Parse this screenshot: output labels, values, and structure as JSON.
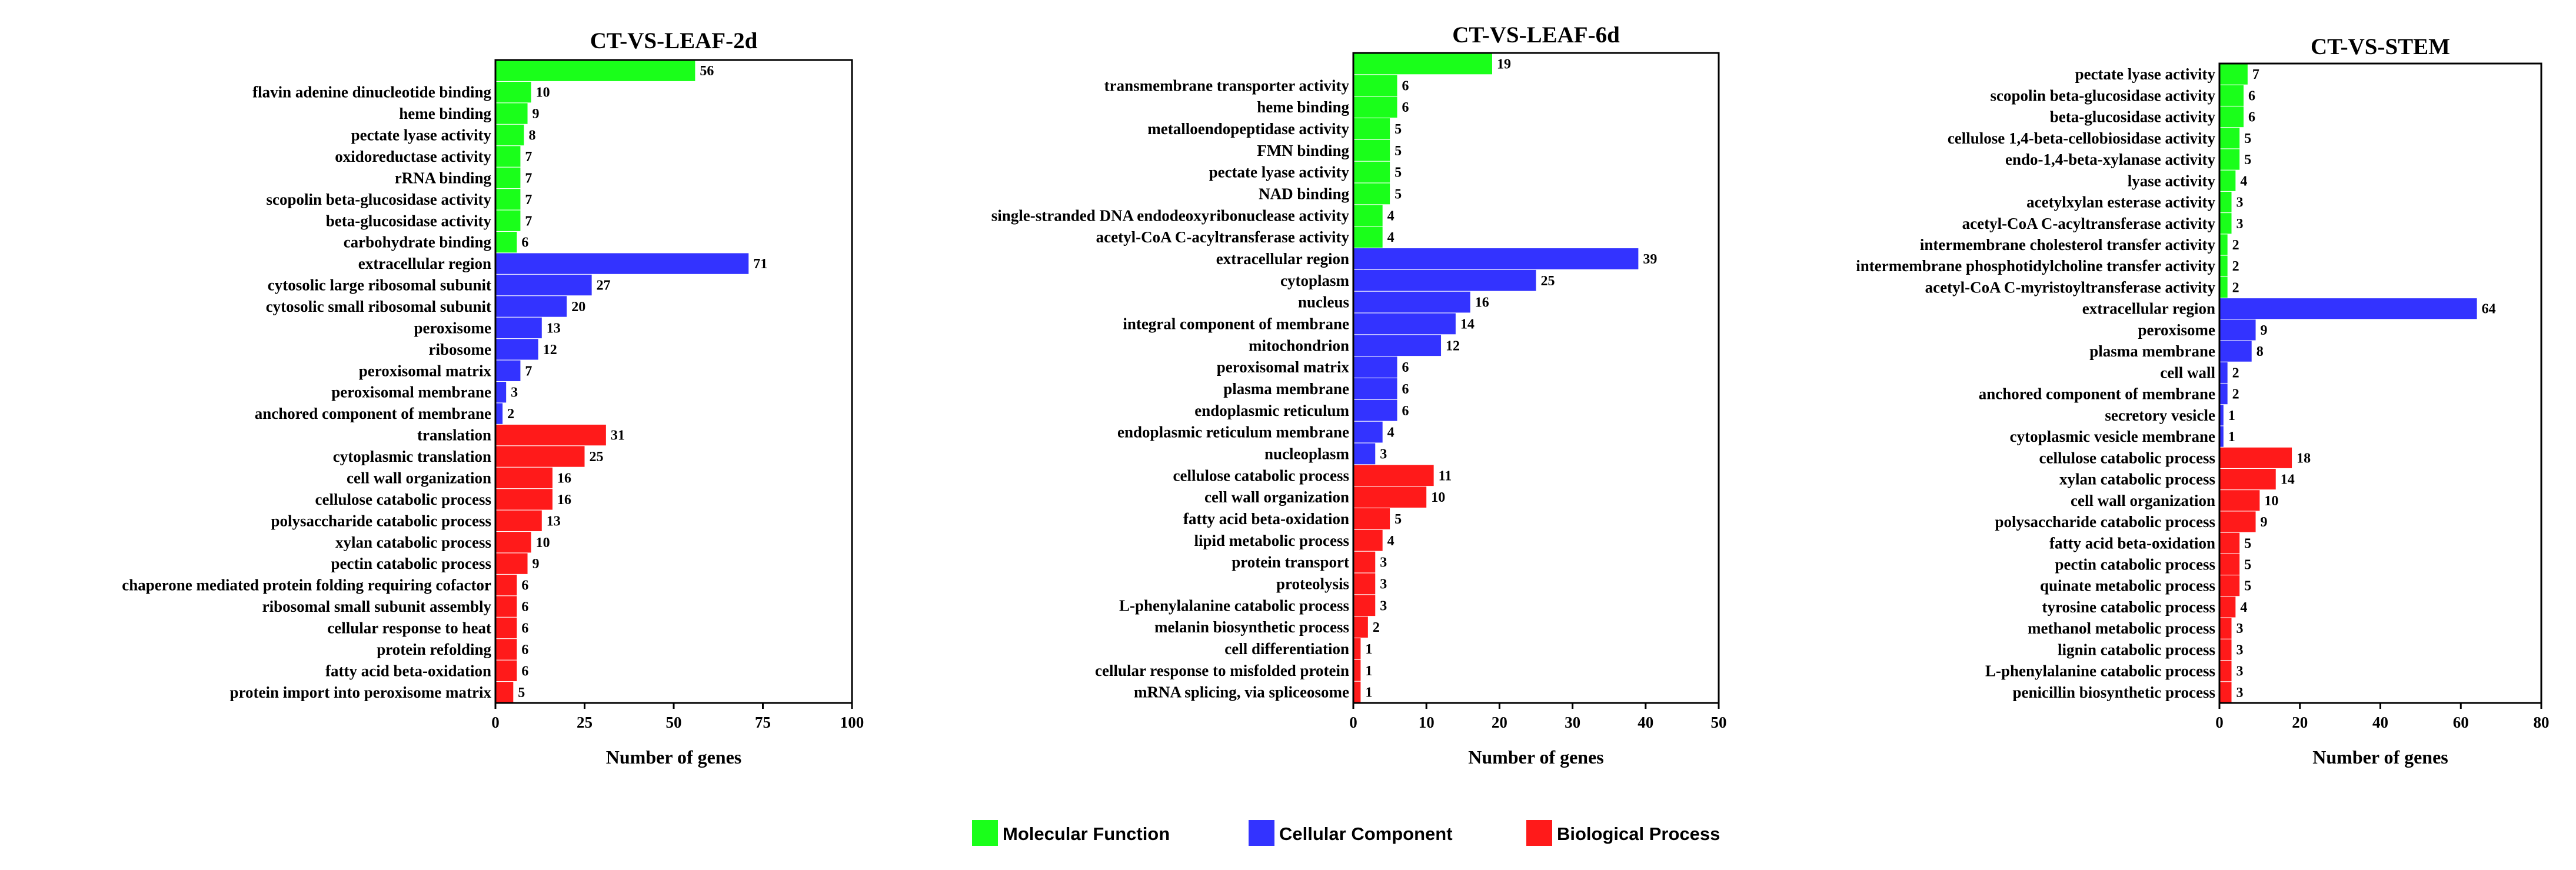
{
  "colors": {
    "molecular_function": "#1aff1a",
    "cellular_component": "#3333ff",
    "biological_process": "#ff1a1a"
  },
  "legend": [
    {
      "key": "molecular_function",
      "label": "Molecular Function"
    },
    {
      "key": "cellular_component",
      "label": "Cellular Component"
    },
    {
      "key": "biological_process",
      "label": "Biological Process"
    }
  ],
  "chart_data": [
    {
      "type": "bar",
      "orientation": "horizontal",
      "title": "CT-VS-LEAF-2d",
      "xlabel": "Number of genes",
      "xlim": [
        0,
        100
      ],
      "xticks": [
        0,
        25,
        50,
        75,
        100
      ],
      "categories": [
        {
          "label": "",
          "value": 56,
          "group": "molecular_function"
        },
        {
          "label": "flavin adenine dinucleotide binding",
          "value": 10,
          "group": "molecular_function"
        },
        {
          "label": "heme binding",
          "value": 9,
          "group": "molecular_function"
        },
        {
          "label": "pectate lyase activity",
          "value": 8,
          "group": "molecular_function"
        },
        {
          "label": "oxidoreductase activity",
          "value": 7,
          "group": "molecular_function"
        },
        {
          "label": "rRNA binding",
          "value": 7,
          "group": "molecular_function"
        },
        {
          "label": "scopolin beta-glucosidase activity",
          "value": 7,
          "group": "molecular_function"
        },
        {
          "label": "beta-glucosidase activity",
          "value": 7,
          "group": "molecular_function"
        },
        {
          "label": "carbohydrate binding",
          "value": 6,
          "group": "molecular_function"
        },
        {
          "label": "extracellular region",
          "value": 71,
          "group": "cellular_component"
        },
        {
          "label": "cytosolic large ribosomal subunit",
          "value": 27,
          "group": "cellular_component"
        },
        {
          "label": "cytosolic small ribosomal subunit",
          "value": 20,
          "group": "cellular_component"
        },
        {
          "label": "peroxisome",
          "value": 13,
          "group": "cellular_component"
        },
        {
          "label": "ribosome",
          "value": 12,
          "group": "cellular_component"
        },
        {
          "label": "peroxisomal matrix",
          "value": 7,
          "group": "cellular_component"
        },
        {
          "label": "peroxisomal membrane",
          "value": 3,
          "group": "cellular_component"
        },
        {
          "label": "anchored component of membrane",
          "value": 2,
          "group": "cellular_component"
        },
        {
          "label": "translation",
          "value": 31,
          "group": "biological_process"
        },
        {
          "label": "cytoplasmic translation",
          "value": 25,
          "group": "biological_process"
        },
        {
          "label": "cell wall organization",
          "value": 16,
          "group": "biological_process"
        },
        {
          "label": "cellulose catabolic process",
          "value": 16,
          "group": "biological_process"
        },
        {
          "label": "polysaccharide catabolic process",
          "value": 13,
          "group": "biological_process"
        },
        {
          "label": "xylan catabolic process",
          "value": 10,
          "group": "biological_process"
        },
        {
          "label": "pectin catabolic process",
          "value": 9,
          "group": "biological_process"
        },
        {
          "label": "chaperone mediated protein folding requiring cofactor",
          "value": 6,
          "group": "biological_process"
        },
        {
          "label": "ribosomal small subunit assembly",
          "value": 6,
          "group": "biological_process"
        },
        {
          "label": "cellular response to heat",
          "value": 6,
          "group": "biological_process"
        },
        {
          "label": "protein refolding",
          "value": 6,
          "group": "biological_process"
        },
        {
          "label": "fatty acid beta-oxidation",
          "value": 6,
          "group": "biological_process"
        },
        {
          "label": "protein import into peroxisome matrix",
          "value": 5,
          "group": "biological_process"
        }
      ]
    },
    {
      "type": "bar",
      "orientation": "horizontal",
      "title": "CT-VS-LEAF-6d",
      "xlabel": "Number of genes",
      "xlim": [
        0,
        50
      ],
      "xticks": [
        0,
        10,
        20,
        30,
        40,
        50
      ],
      "categories": [
        {
          "label": "",
          "value": 19,
          "group": "molecular_function"
        },
        {
          "label": "transmembrane transporter activity",
          "value": 6,
          "group": "molecular_function"
        },
        {
          "label": "heme binding",
          "value": 6,
          "group": "molecular_function"
        },
        {
          "label": "metalloendopeptidase activity",
          "value": 5,
          "group": "molecular_function"
        },
        {
          "label": "FMN binding",
          "value": 5,
          "group": "molecular_function"
        },
        {
          "label": "pectate lyase activity",
          "value": 5,
          "group": "molecular_function"
        },
        {
          "label": "NAD binding",
          "value": 5,
          "group": "molecular_function"
        },
        {
          "label": "single-stranded DNA endodeoxyribonuclease activity",
          "value": 4,
          "group": "molecular_function"
        },
        {
          "label": "acetyl-CoA C-acyltransferase activity",
          "value": 4,
          "group": "molecular_function"
        },
        {
          "label": "extracellular region",
          "value": 39,
          "group": "cellular_component"
        },
        {
          "label": "cytoplasm",
          "value": 25,
          "group": "cellular_component"
        },
        {
          "label": "nucleus",
          "value": 16,
          "group": "cellular_component"
        },
        {
          "label": "integral component of membrane",
          "value": 14,
          "group": "cellular_component"
        },
        {
          "label": "mitochondrion",
          "value": 12,
          "group": "cellular_component"
        },
        {
          "label": "peroxisomal matrix",
          "value": 6,
          "group": "cellular_component"
        },
        {
          "label": "plasma membrane",
          "value": 6,
          "group": "cellular_component"
        },
        {
          "label": "endoplasmic reticulum",
          "value": 6,
          "group": "cellular_component"
        },
        {
          "label": "endoplasmic reticulum membrane",
          "value": 4,
          "group": "cellular_component"
        },
        {
          "label": "nucleoplasm",
          "value": 3,
          "group": "cellular_component"
        },
        {
          "label": "cellulose catabolic process",
          "value": 11,
          "group": "biological_process"
        },
        {
          "label": "cell wall organization",
          "value": 10,
          "group": "biological_process"
        },
        {
          "label": "fatty acid beta-oxidation",
          "value": 5,
          "group": "biological_process"
        },
        {
          "label": "lipid metabolic process",
          "value": 4,
          "group": "biological_process"
        },
        {
          "label": "protein transport",
          "value": 3,
          "group": "biological_process"
        },
        {
          "label": "proteolysis",
          "value": 3,
          "group": "biological_process"
        },
        {
          "label": "L-phenylalanine catabolic process",
          "value": 3,
          "group": "biological_process"
        },
        {
          "label": "melanin biosynthetic process",
          "value": 2,
          "group": "biological_process"
        },
        {
          "label": "cell differentiation",
          "value": 1,
          "group": "biological_process"
        },
        {
          "label": "cellular response to misfolded protein",
          "value": 1,
          "group": "biological_process"
        },
        {
          "label": "mRNA splicing, via spliceosome",
          "value": 1,
          "group": "biological_process"
        }
      ]
    },
    {
      "type": "bar",
      "orientation": "horizontal",
      "title": "CT-VS-STEM",
      "xlabel": "Number of genes",
      "xlim": [
        0,
        80
      ],
      "xticks": [
        0,
        20,
        40,
        60,
        80
      ],
      "categories": [
        {
          "label": "pectate lyase activity",
          "value": 7,
          "group": "molecular_function"
        },
        {
          "label": "scopolin beta-glucosidase activity",
          "value": 6,
          "group": "molecular_function"
        },
        {
          "label": "beta-glucosidase activity",
          "value": 6,
          "group": "molecular_function"
        },
        {
          "label": "cellulose 1,4-beta-cellobiosidase activity",
          "value": 5,
          "group": "molecular_function"
        },
        {
          "label": "endo-1,4-beta-xylanase activity",
          "value": 5,
          "group": "molecular_function"
        },
        {
          "label": "lyase activity",
          "value": 4,
          "group": "molecular_function"
        },
        {
          "label": "acetylxylan esterase activity",
          "value": 3,
          "group": "molecular_function"
        },
        {
          "label": "acetyl-CoA C-acyltransferase activity",
          "value": 3,
          "group": "molecular_function"
        },
        {
          "label": "intermembrane cholesterol transfer activity",
          "value": 2,
          "group": "molecular_function"
        },
        {
          "label": "intermembrane phosphotidylcholine transfer activity",
          "value": 2,
          "group": "molecular_function"
        },
        {
          "label": "acetyl-CoA C-myristoyltransferase activity",
          "value": 2,
          "group": "molecular_function"
        },
        {
          "label": "extracellular region",
          "value": 64,
          "group": "cellular_component"
        },
        {
          "label": "peroxisome",
          "value": 9,
          "group": "cellular_component"
        },
        {
          "label": "plasma membrane",
          "value": 8,
          "group": "cellular_component"
        },
        {
          "label": "cell wall",
          "value": 2,
          "group": "cellular_component"
        },
        {
          "label": "anchored component of membrane",
          "value": 2,
          "group": "cellular_component"
        },
        {
          "label": "secretory vesicle",
          "value": 1,
          "group": "cellular_component"
        },
        {
          "label": "cytoplasmic vesicle membrane",
          "value": 1,
          "group": "cellular_component"
        },
        {
          "label": "cellulose catabolic process",
          "value": 18,
          "group": "biological_process"
        },
        {
          "label": "xylan catabolic process",
          "value": 14,
          "group": "biological_process"
        },
        {
          "label": "cell wall organization",
          "value": 10,
          "group": "biological_process"
        },
        {
          "label": "polysaccharide catabolic process",
          "value": 9,
          "group": "biological_process"
        },
        {
          "label": "fatty acid beta-oxidation",
          "value": 5,
          "group": "biological_process"
        },
        {
          "label": "pectin catabolic process",
          "value": 5,
          "group": "biological_process"
        },
        {
          "label": "quinate metabolic process",
          "value": 5,
          "group": "biological_process"
        },
        {
          "label": "tyrosine catabolic process",
          "value": 4,
          "group": "biological_process"
        },
        {
          "label": "methanol metabolic process",
          "value": 3,
          "group": "biological_process"
        },
        {
          "label": "lignin catabolic process",
          "value": 3,
          "group": "biological_process"
        },
        {
          "label": "L-phenylalanine catabolic process",
          "value": 3,
          "group": "biological_process"
        },
        {
          "label": "penicillin biosynthetic process",
          "value": 3,
          "group": "biological_process"
        }
      ]
    }
  ]
}
